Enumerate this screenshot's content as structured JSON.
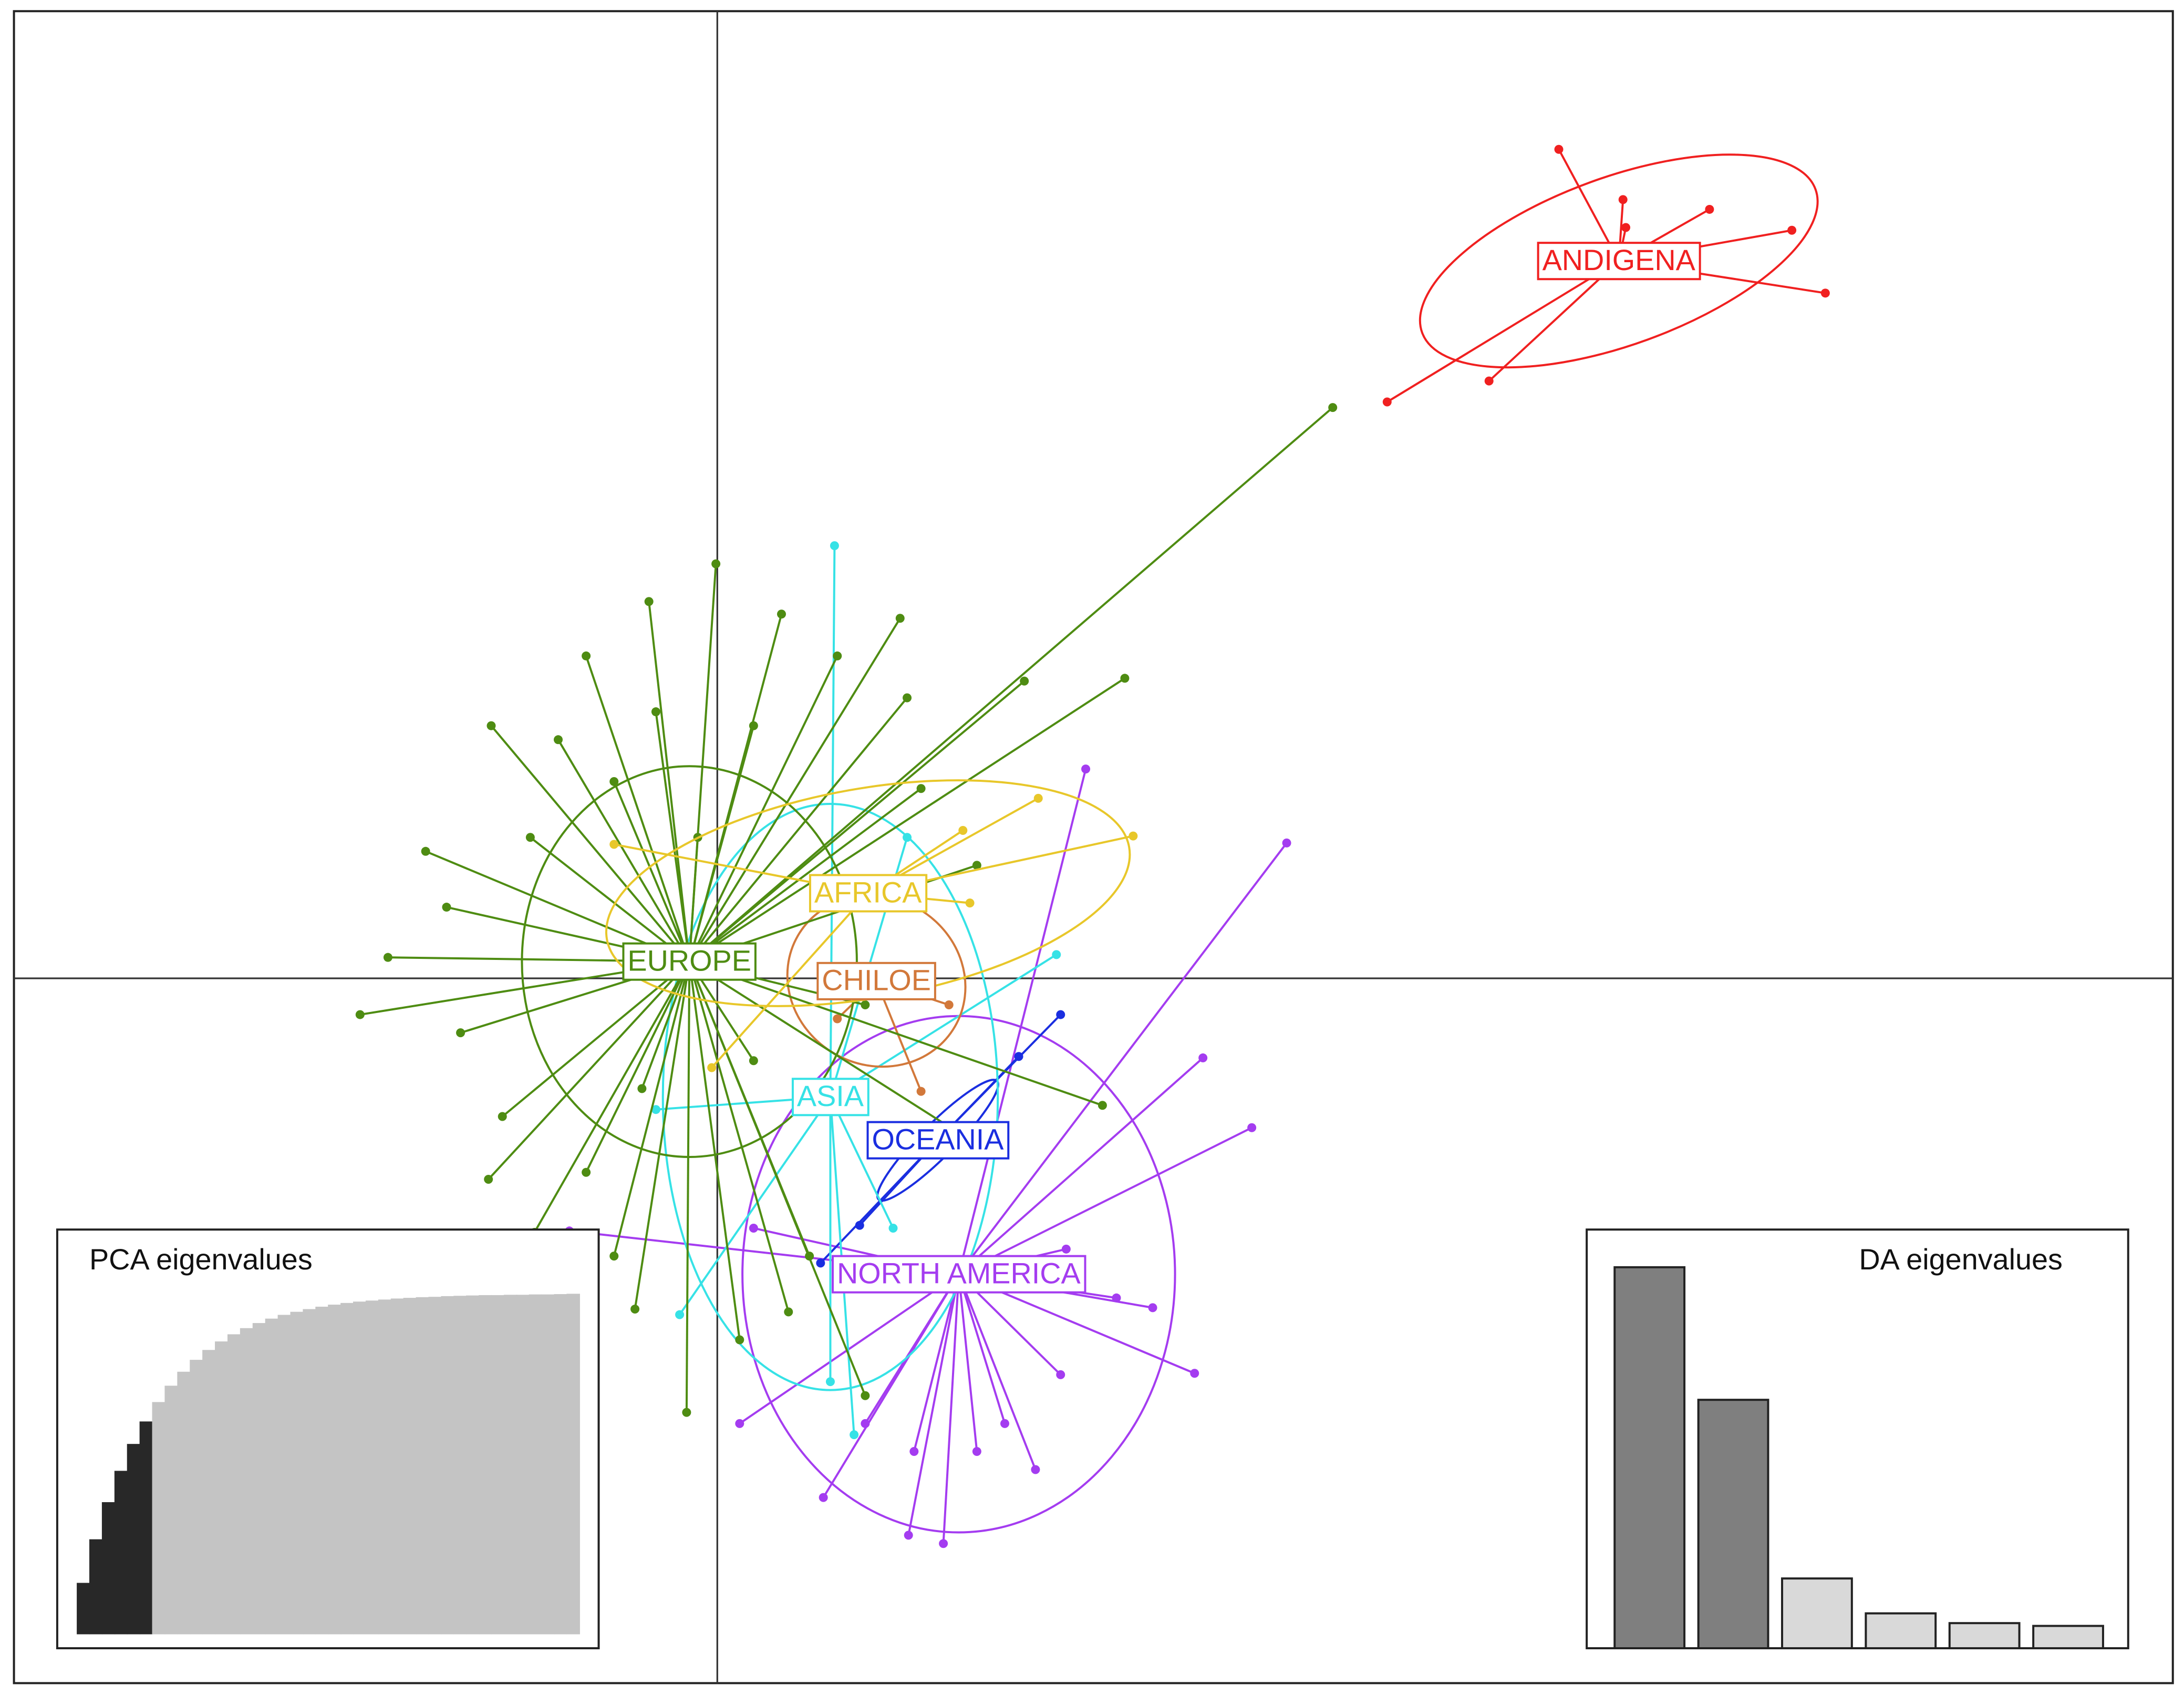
{
  "chart_data": [
    {
      "type": "scatter",
      "xlim": [
        -5.04,
        10.43
      ],
      "ylim": [
        -5.05,
        6.93
      ],
      "series": [
        {
          "name": "NORTH AMERICA",
          "color": "#a43cf0",
          "centroid": [
            1.73,
            -2.12
          ],
          "ellipse": [
            1.55,
            1.85,
            0
          ],
          "x": [
            4.08,
            2.64,
            3.48,
            3.83,
            3.42,
            3.12,
            2.5,
            2.28,
            1.62,
            1.37,
            0.76,
            0.16,
            -1.06,
            0.26,
            2.06,
            1.86,
            2.86,
            1.06,
            1.41,
            2.46
          ],
          "y": [
            0.97,
            1.5,
            -0.57,
            -1.07,
            -2.83,
            -2.36,
            -1.94,
            -3.52,
            -4.05,
            -3.99,
            -3.72,
            -3.19,
            -1.81,
            -1.79,
            -3.19,
            -3.39,
            -2.29,
            -3.19,
            -3.39,
            -2.84
          ]
        },
        {
          "name": "OCEANIA",
          "color": "#1a2ee0",
          "centroid": [
            1.58,
            -1.16
          ],
          "ellipse": [
            0.6,
            0.12,
            45
          ],
          "x": [
            2.16,
            1.02,
            0.74,
            2.46
          ],
          "y": [
            -0.56,
            -1.77,
            -2.04,
            -0.26
          ]
        },
        {
          "name": "ASIA",
          "color": "#36e2e6",
          "centroid": [
            0.81,
            -0.85
          ],
          "ellipse": [
            1.2,
            2.1,
            0
          ],
          "x": [
            0.84,
            2.43,
            -0.27,
            0.98,
            0.81,
            1.36,
            -0.44,
            1.26
          ],
          "y": [
            3.1,
            0.17,
            -2.41,
            -3.27,
            -2.89,
            1.01,
            -0.94,
            -1.79
          ]
        },
        {
          "name": "CHILOE",
          "color": "#d2783a",
          "centroid": [
            1.14,
            -0.02
          ],
          "ellipse": [
            0.65,
            0.6,
            -30
          ],
          "x": [
            1.46,
            0.86,
            1.66
          ],
          "y": [
            -0.81,
            -0.29,
            -0.19
          ]
        },
        {
          "name": "EUROPE",
          "color": "#4e8c12",
          "centroid": [
            -0.2,
            0.12
          ],
          "ellipse": [
            1.2,
            1.4,
            0
          ],
          "x": [
            4.41,
            2.92,
            2.2,
            -0.49,
            -0.01,
            1.31,
            -2.56,
            -2.36,
            -1.62,
            -2.09,
            -1.64,
            -1.31,
            -0.59,
            -0.22,
            0.51,
            1.06,
            2.76,
            1.46,
            1.86,
            -0.94,
            0.46,
            0.86,
            -1.14,
            -1.84,
            -1.54,
            -0.94,
            -0.74,
            0.16,
            0.66,
            1.86,
            -1.94,
            -1.34,
            -0.14,
            -0.54,
            0.26,
            1.06,
            -0.74,
            -0.44,
            0.26,
            1.36
          ],
          "y": [
            4.09,
            2.15,
            2.13,
            2.7,
            2.97,
            2.58,
            -0.26,
            0.15,
            1.81,
            0.91,
            -1.44,
            -1.82,
            -2.37,
            -3.11,
            -2.39,
            -2.99,
            -0.91,
            1.36,
            0.81,
            2.31,
            2.61,
            2.31,
            1.71,
            -0.39,
            -0.99,
            -1.39,
            -1.99,
            -2.59,
            -1.99,
            -1.19,
            0.51,
            1.01,
            1.01,
            -0.79,
            -0.59,
            -0.19,
            1.41,
            1.91,
            1.81,
            2.01
          ]
        },
        {
          "name": "AFRICA",
          "color": "#e8c72a",
          "centroid": [
            1.08,
            0.61
          ],
          "ellipse": [
            1.9,
            0.75,
            10
          ],
          "x": [
            2.3,
            2.98,
            1.81,
            1.76,
            -0.74,
            -0.04
          ],
          "y": [
            1.29,
            1.02,
            0.54,
            1.06,
            0.96,
            -0.64
          ]
        },
        {
          "name": "ANDIGENA",
          "color": "#f02020",
          "centroid": [
            6.46,
            5.14
          ],
          "ellipse": [
            1.5,
            0.6,
            20
          ],
          "x": [
            6.03,
            6.49,
            6.51,
            7.11,
            7.7,
            7.94,
            5.53,
            4.8
          ],
          "y": [
            5.94,
            5.58,
            5.38,
            5.51,
            5.36,
            4.91,
            4.28,
            4.13
          ]
        }
      ]
    },
    {
      "type": "bar",
      "title": "PCA eigenvalues",
      "values": [
        15.1,
        27.9,
        38.8,
        48.0,
        55.9,
        62.5,
        68.2,
        73.0,
        77.1,
        80.6,
        83.5,
        86.0,
        88.1,
        89.9,
        91.4,
        92.7,
        93.8,
        94.7,
        95.5,
        96.2,
        96.8,
        97.3,
        97.7,
        98.0,
        98.3,
        98.6,
        98.8,
        99.0,
        99.1,
        99.3,
        99.4,
        99.5,
        99.6,
        99.6,
        99.7,
        99.7,
        99.8,
        99.8,
        99.9,
        100
      ],
      "colors": [
        "#282828",
        "#282828",
        "#282828",
        "#282828",
        "#282828",
        "#282828",
        "#c4c4c4",
        "#c4c4c4",
        "#c4c4c4",
        "#c4c4c4",
        "#c4c4c4",
        "#c4c4c4",
        "#c4c4c4",
        "#c4c4c4",
        "#c4c4c4",
        "#c4c4c4",
        "#c4c4c4",
        "#c4c4c4",
        "#c4c4c4",
        "#c4c4c4",
        "#c4c4c4",
        "#c4c4c4",
        "#c4c4c4",
        "#c4c4c4",
        "#c4c4c4",
        "#c4c4c4",
        "#c4c4c4",
        "#c4c4c4",
        "#c4c4c4",
        "#c4c4c4",
        "#c4c4c4",
        "#c4c4c4",
        "#c4c4c4",
        "#c4c4c4",
        "#c4c4c4",
        "#c4c4c4",
        "#c4c4c4",
        "#c4c4c4",
        "#c4c4c4",
        "#c4c4c4"
      ]
    },
    {
      "type": "bar",
      "title": "DA eigenvalues",
      "values": [
        273,
        178,
        50,
        25,
        18,
        16
      ],
      "colors": [
        "#7f7f7f",
        "#7f7f7f",
        "#d9d9d9",
        "#d9d9d9",
        "#d9d9d9",
        "#d9d9d9"
      ]
    }
  ]
}
